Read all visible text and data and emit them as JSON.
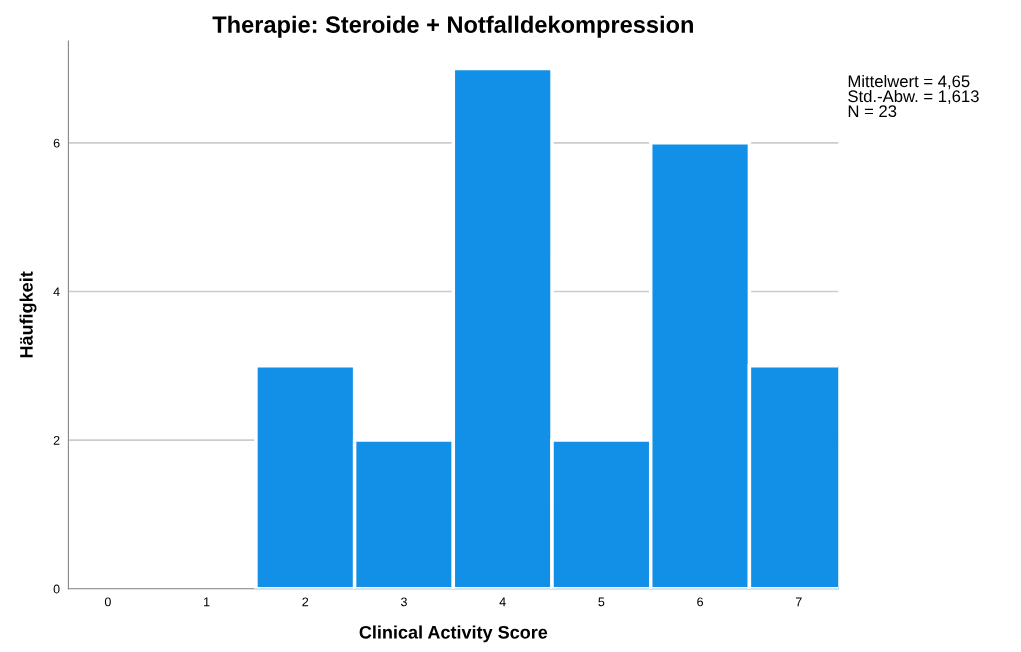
{
  "chart_data": {
    "type": "histogram",
    "title": "Therapie: Steroide + Notfalldekompression",
    "xlabel": "Clinical Activity Score",
    "ylabel": "Häufigkeit",
    "bins": [
      -0.5,
      0.5,
      1.5,
      2.5,
      3.5,
      4.5,
      5.5,
      6.5,
      7.5
    ],
    "values": [
      0,
      0,
      3,
      2,
      7,
      2,
      6,
      3
    ],
    "color": "#128fe6",
    "xlim": [
      -0.4,
      7.4
    ],
    "xticks": [
      0,
      1,
      2,
      3,
      4,
      5,
      6,
      7
    ],
    "ylim": [
      0,
      7.37
    ],
    "yticks": [
      0,
      2,
      4,
      6
    ],
    "grid": "y",
    "legend": false,
    "annotations": [
      "Mittelwert = 4,65\nStd.-Abw. = 1,613\nN = 23"
    ]
  }
}
